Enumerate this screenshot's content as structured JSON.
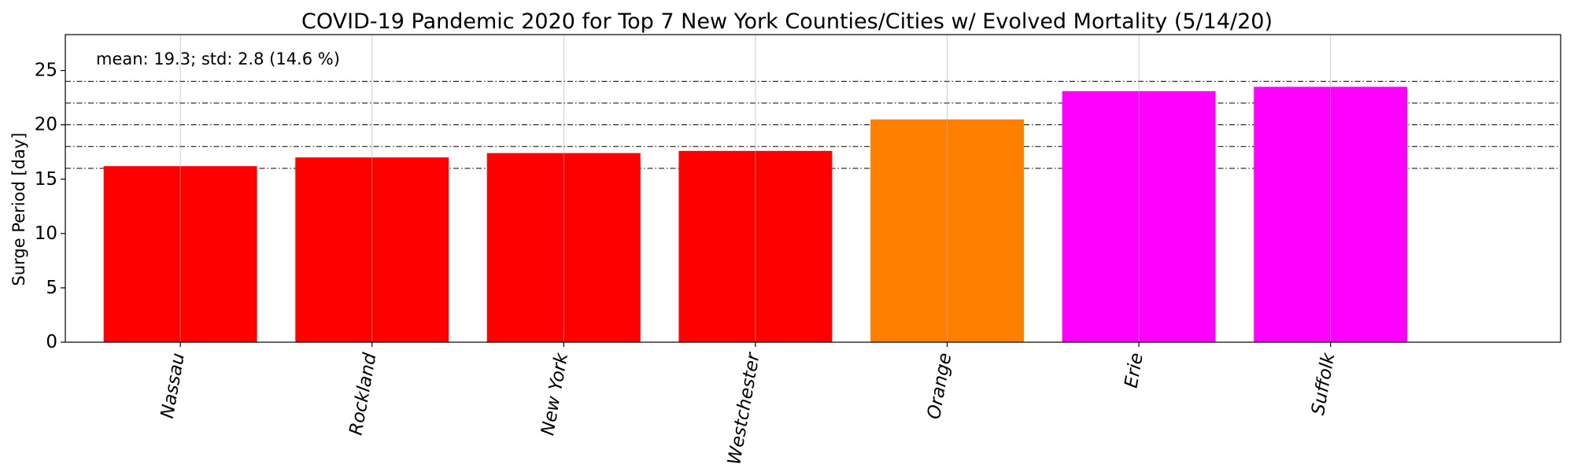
{
  "chart_data": {
    "type": "bar",
    "title": "COVID-19 Pandemic 2020 for Top 7 New York Counties/Cities w/ Evolved Mortality (5/14/20)",
    "xlabel": "",
    "ylabel": "Surge Period [day]",
    "annotation": "mean: 19.3; std: 2.8 (14.6 %)",
    "categories": [
      "Nassau",
      "Rockland",
      "New York",
      "Westchester",
      "Orange",
      "Erie",
      "Suffolk"
    ],
    "values": [
      16.2,
      17.0,
      17.4,
      17.6,
      20.5,
      23.1,
      23.5
    ],
    "bar_colors": [
      "#ff0000",
      "#ff0000",
      "#ff0000",
      "#ff0000",
      "#ff8000",
      "#ff00ff",
      "#ff00ff"
    ],
    "ylim": [
      0,
      28.3
    ],
    "yticks": [
      0,
      5,
      10,
      15,
      20,
      25
    ],
    "reference_lines": [
      16,
      18,
      20,
      22,
      24
    ],
    "grid": "vertical",
    "xlabel_rotation": "80°"
  }
}
